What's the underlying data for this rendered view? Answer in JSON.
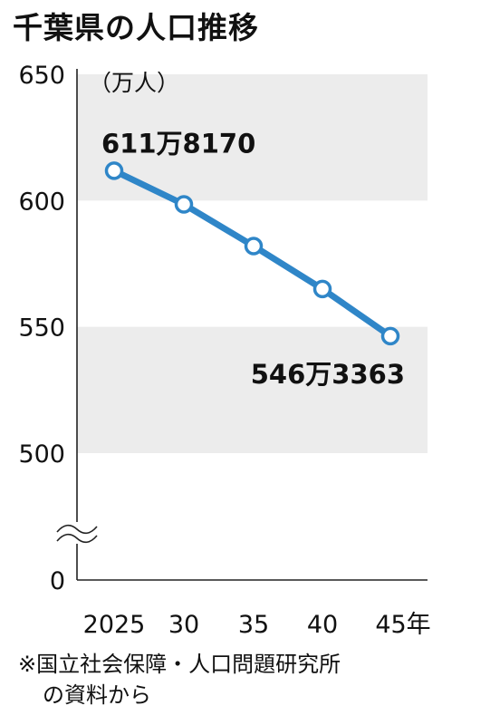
{
  "title": "千葉県の人口推移",
  "chart_data": {
    "type": "line",
    "x_categories": [
      "2025",
      "30",
      "35",
      "40",
      "45年"
    ],
    "values": [
      611.817,
      598.5,
      582.0,
      565.0,
      546.3363
    ],
    "ylabel": "（万人）",
    "ylim": [
      500,
      650
    ],
    "yticks": [
      "650",
      "600",
      "550",
      "500",
      "0"
    ],
    "axis_break": true,
    "data_labels": [
      {
        "index": 0,
        "text": "611万8170"
      },
      {
        "index": 4,
        "text": "546万3363"
      }
    ],
    "line_color": "#2f86c8",
    "band_color": "#ececec"
  },
  "source": {
    "line1": "※国立社会保障・人口問題研究所",
    "line2": "の資料から"
  }
}
